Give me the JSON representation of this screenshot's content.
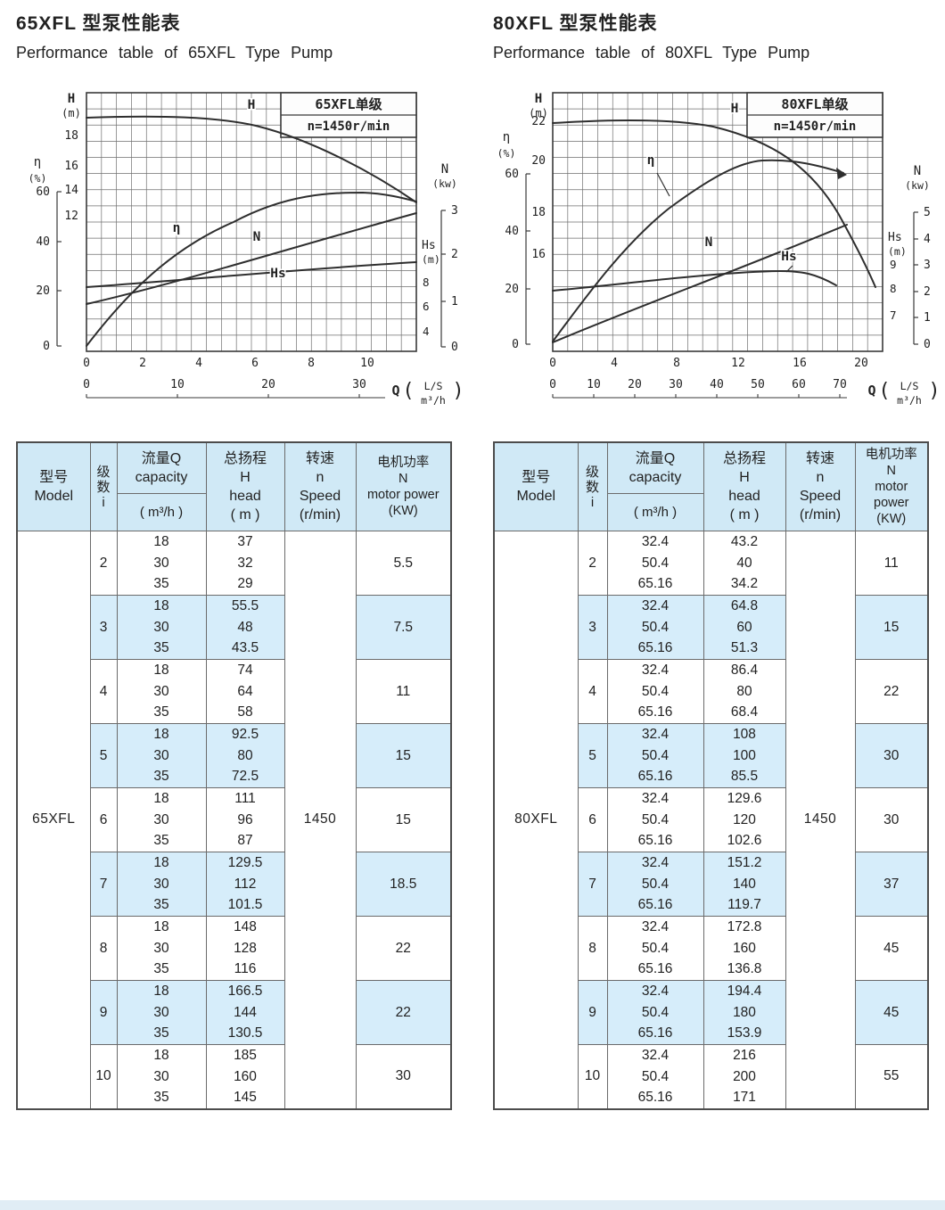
{
  "page": {
    "left_title_zh": "65XFL 型泵性能表",
    "left_title_en": "Performance table of 65XFL Type Pump",
    "right_title_zh": "80XFL 型泵性能表",
    "right_title_en": "Performance table of 80XFL Type Pump"
  },
  "colors": {
    "band_blue": "#d6edfa",
    "header_blue": "#d0e9f6",
    "chart_ink": "#333333"
  },
  "chart_data": [
    {
      "type": "line",
      "title": "65XFL单级",
      "subtitle": "n=1450r/min",
      "x_axis": {
        "label": "Q",
        "units": [
          "L/S",
          "m³/h"
        ],
        "ticks_ls": [
          "0",
          "2",
          "4",
          "6",
          "8",
          "10"
        ],
        "ticks_m3h": [
          "0",
          "10",
          "20",
          "30"
        ]
      },
      "y_axes": [
        {
          "label": "H",
          "unit": "(m)",
          "ticks": [
            "18",
            "16",
            "14",
            "12"
          ]
        },
        {
          "label": "η",
          "unit": "(%)",
          "ticks": [
            "60",
            "40",
            "20",
            "0"
          ]
        },
        {
          "label": "N",
          "unit": "(kw)",
          "ticks": [
            "3",
            "2",
            "1",
            "0"
          ]
        },
        {
          "label": "Hs",
          "unit": "(m)",
          "ticks": [
            "8",
            "6",
            "4"
          ]
        }
      ],
      "series": [
        {
          "name": "H",
          "unit": "m",
          "x": [
            0,
            2,
            4,
            6,
            8,
            10,
            11
          ],
          "y": [
            19,
            19,
            18.8,
            17.8,
            16.4,
            14.6,
            13.4
          ]
        },
        {
          "name": "η",
          "unit": "%",
          "x": [
            0,
            2,
            4,
            6,
            8,
            10,
            11
          ],
          "y": [
            0,
            24,
            40,
            50,
            56,
            57,
            55
          ]
        },
        {
          "name": "N",
          "unit": "kw",
          "x": [
            0,
            4,
            8,
            11
          ],
          "y": [
            1.1,
            1.8,
            2.5,
            3.0
          ]
        },
        {
          "name": "Hs",
          "unit": "m",
          "x": [
            0,
            6,
            11
          ],
          "y": [
            7.6,
            8.6,
            9.5
          ]
        }
      ],
      "grid": true,
      "legend_position": "on-curve"
    },
    {
      "type": "line",
      "title": "80XFL单级",
      "subtitle": "n=1450r/min",
      "x_axis": {
        "label": "Q",
        "units": [
          "L/S",
          "m³/h"
        ],
        "ticks_ls": [
          "0",
          "4",
          "8",
          "12",
          "16",
          "20"
        ],
        "ticks_m3h": [
          "0",
          "10",
          "20",
          "30",
          "40",
          "50",
          "60",
          "70"
        ]
      },
      "y_axes": [
        {
          "label": "H",
          "unit": "(m)",
          "ticks": [
            "22",
            "20",
            "18",
            "16"
          ]
        },
        {
          "label": "η",
          "unit": "(%)",
          "ticks": [
            "60",
            "40",
            "20",
            "0"
          ]
        },
        {
          "label": "Hs",
          "unit": "(m)",
          "ticks": [
            "9",
            "8",
            "7"
          ]
        },
        {
          "label": "N",
          "unit": "(kw)",
          "ticks": [
            "5",
            "4",
            "3",
            "2",
            "1",
            "0"
          ]
        }
      ],
      "series": [
        {
          "name": "H",
          "unit": "m",
          "x": [
            0,
            4,
            8,
            12,
            16,
            19.5
          ],
          "y": [
            21.5,
            21.7,
            21.6,
            20.4,
            18.2,
            14.8
          ]
        },
        {
          "name": "η",
          "unit": "%",
          "x": [
            0,
            4,
            8,
            13,
            17
          ],
          "y": [
            0,
            33,
            50,
            62,
            60
          ]
        },
        {
          "name": "N",
          "unit": "kw",
          "x": [
            0,
            6,
            12,
            19
          ],
          "y": [
            0.1,
            1.6,
            3.1,
            4.5
          ]
        },
        {
          "name": "Hs",
          "unit": "m",
          "x": [
            0,
            8,
            14,
            18.5
          ],
          "y": [
            7.9,
            8.5,
            8.7,
            8.1
          ]
        }
      ],
      "grid": true,
      "legend_position": "on-curve"
    }
  ],
  "table_header": {
    "model": [
      "型号",
      "Model"
    ],
    "stage": [
      "级",
      "数",
      "i"
    ],
    "capacity_top": [
      "流量Q",
      "capacity"
    ],
    "capacity_unit": "( m³/h )",
    "head": [
      "总扬程",
      "H",
      "head",
      "( m )"
    ],
    "speed": [
      "转速",
      "n",
      "Speed",
      "(r/min)"
    ],
    "power": [
      "电机功率",
      "N",
      "motor power",
      "(KW)"
    ]
  },
  "tables": [
    {
      "model": "65XFL",
      "speed": "1450",
      "groups": [
        {
          "stage": "2",
          "q": [
            "18",
            "30",
            "35"
          ],
          "h": [
            "37",
            "32",
            "29"
          ],
          "power": "5.5"
        },
        {
          "stage": "3",
          "q": [
            "18",
            "30",
            "35"
          ],
          "h": [
            "55.5",
            "48",
            "43.5"
          ],
          "power": "7.5"
        },
        {
          "stage": "4",
          "q": [
            "18",
            "30",
            "35"
          ],
          "h": [
            "74",
            "64",
            "58"
          ],
          "power": "11"
        },
        {
          "stage": "5",
          "q": [
            "18",
            "30",
            "35"
          ],
          "h": [
            "92.5",
            "80",
            "72.5"
          ],
          "power": "15"
        },
        {
          "stage": "6",
          "q": [
            "18",
            "30",
            "35"
          ],
          "h": [
            "111",
            "96",
            "87"
          ],
          "power": "15"
        },
        {
          "stage": "7",
          "q": [
            "18",
            "30",
            "35"
          ],
          "h": [
            "129.5",
            "112",
            "101.5"
          ],
          "power": "18.5"
        },
        {
          "stage": "8",
          "q": [
            "18",
            "30",
            "35"
          ],
          "h": [
            "148",
            "128",
            "116"
          ],
          "power": "22"
        },
        {
          "stage": "9",
          "q": [
            "18",
            "30",
            "35"
          ],
          "h": [
            "166.5",
            "144",
            "130.5"
          ],
          "power": "22"
        },
        {
          "stage": "10",
          "q": [
            "18",
            "30",
            "35"
          ],
          "h": [
            "185",
            "160",
            "145"
          ],
          "power": "30"
        }
      ]
    },
    {
      "model": "80XFL",
      "speed": "1450",
      "groups": [
        {
          "stage": "2",
          "q": [
            "32.4",
            "50.4",
            "65.16"
          ],
          "h": [
            "43.2",
            "40",
            "34.2"
          ],
          "power": "11"
        },
        {
          "stage": "3",
          "q": [
            "32.4",
            "50.4",
            "65.16"
          ],
          "h": [
            "64.8",
            "60",
            "51.3"
          ],
          "power": "15"
        },
        {
          "stage": "4",
          "q": [
            "32.4",
            "50.4",
            "65.16"
          ],
          "h": [
            "86.4",
            "80",
            "68.4"
          ],
          "power": "22"
        },
        {
          "stage": "5",
          "q": [
            "32.4",
            "50.4",
            "65.16"
          ],
          "h": [
            "108",
            "100",
            "85.5"
          ],
          "power": "30"
        },
        {
          "stage": "6",
          "q": [
            "32.4",
            "50.4",
            "65.16"
          ],
          "h": [
            "129.6",
            "120",
            "102.6"
          ],
          "power": "30"
        },
        {
          "stage": "7",
          "q": [
            "32.4",
            "50.4",
            "65.16"
          ],
          "h": [
            "151.2",
            "140",
            "119.7"
          ],
          "power": "37"
        },
        {
          "stage": "8",
          "q": [
            "32.4",
            "50.4",
            "65.16"
          ],
          "h": [
            "172.8",
            "160",
            "136.8"
          ],
          "power": "45"
        },
        {
          "stage": "9",
          "q": [
            "32.4",
            "50.4",
            "65.16"
          ],
          "h": [
            "194.4",
            "180",
            "153.9"
          ],
          "power": "45"
        },
        {
          "stage": "10",
          "q": [
            "32.4",
            "50.4",
            "65.16"
          ],
          "h": [
            "216",
            "200",
            "171"
          ],
          "power": "55"
        }
      ]
    }
  ]
}
